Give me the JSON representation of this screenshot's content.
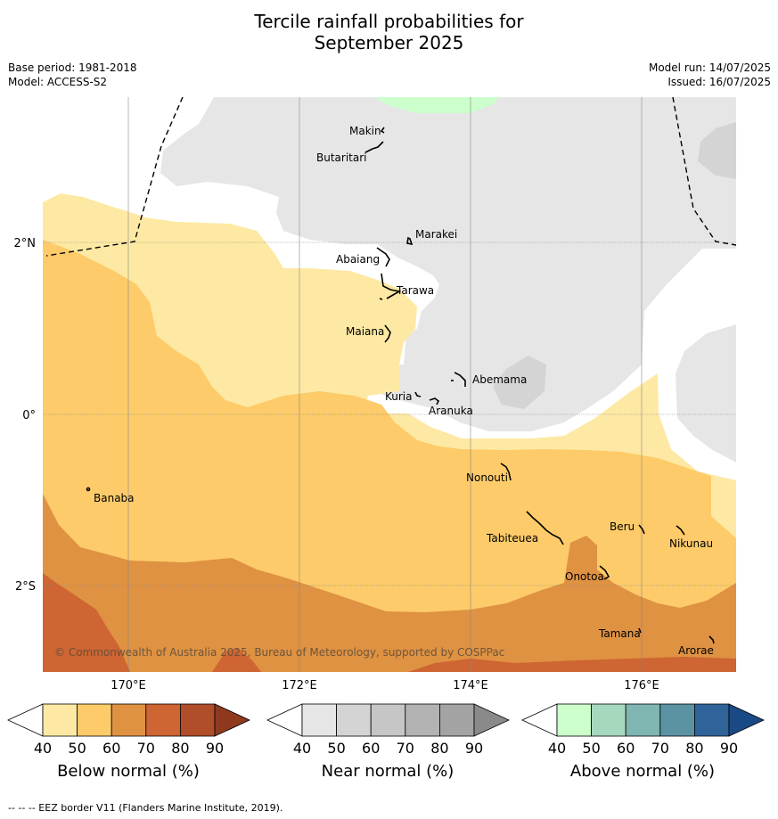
{
  "title": {
    "line1": "Tercile rainfall probabilities for",
    "line2": "September 2025"
  },
  "meta": {
    "base_period": "Base period: 1981-2018",
    "model": "Model: ACCESS-S2",
    "model_run": "Model run: 14/07/2025",
    "issued": "Issued: 16/07/2025"
  },
  "map": {
    "lat_labels": [
      "2°N",
      "0°",
      "2°S"
    ],
    "lon_labels": [
      "170°E",
      "172°E",
      "174°E",
      "176°E"
    ],
    "islands": [
      "Makin",
      "Butaritari",
      "Marakei",
      "Abaiang",
      "Tarawa",
      "Maiana",
      "Abemama",
      "Kuria",
      "Aranuka",
      "Banaba",
      "Nonouti",
      "Tabiteuea",
      "Beru",
      "Nikunau",
      "Onotoa",
      "Tamana",
      "Arorae"
    ],
    "copyright": "© Commonwealth of Australia 2025, Bureau of Meteorology, supported by COSPPac",
    "colors": {
      "below_40_50": "#fde9a3",
      "below_50_60": "#fdcb69",
      "below_60_70": "#df9242",
      "below_70_80": "#ce6532",
      "near_normal": "#e6e6e6",
      "near_50_60": "#d4d4d4",
      "above_40_50": "#ccffcc"
    }
  },
  "legends": [
    {
      "title": "Below normal (%)",
      "ticks": [
        "40",
        "50",
        "60",
        "70",
        "80",
        "90"
      ],
      "colors": [
        "#ffffff",
        "#fde9a3",
        "#fdcb69",
        "#df9242",
        "#ce6532",
        "#b04e2a",
        "#8f3a1e"
      ]
    },
    {
      "title": "Near normal (%)",
      "ticks": [
        "40",
        "50",
        "60",
        "70",
        "80",
        "90"
      ],
      "colors": [
        "#ffffff",
        "#e6e6e6",
        "#d4d4d4",
        "#c6c6c6",
        "#b3b3b3",
        "#a3a3a3",
        "#8a8a8a"
      ]
    },
    {
      "title": "Above normal (%)",
      "ticks": [
        "40",
        "50",
        "60",
        "70",
        "80",
        "90"
      ],
      "colors": [
        "#ffffff",
        "#ccffcc",
        "#a6d8bd",
        "#7fb6b1",
        "#5b93a3",
        "#2f639a",
        "#1a4a85"
      ]
    }
  ],
  "footer": "--  --  -- EEZ border V11 (Flanders Marine Institute, 2019)."
}
